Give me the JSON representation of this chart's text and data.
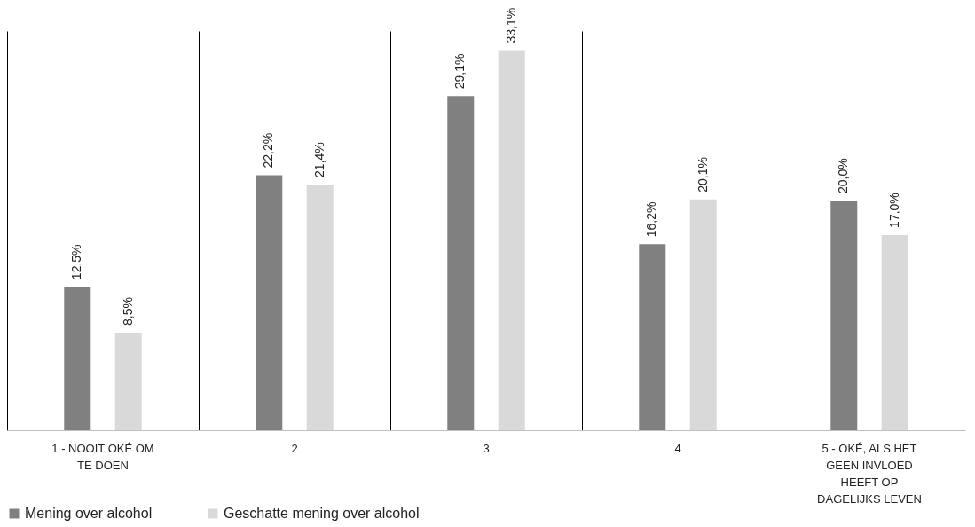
{
  "chart_data": {
    "type": "bar",
    "categories": [
      "1 - NOOIT OKÉ OM TE DOEN",
      "2",
      "3",
      "4",
      "5 - OKÉ, ALS HET GEEN INVLOED HEEFT OP DAGELIJKS LEVEN"
    ],
    "series": [
      {
        "name": "Mening over alcohol",
        "color": "#808080",
        "values": [
          12.5,
          22.2,
          29.1,
          16.2,
          20.0
        ],
        "value_labels": [
          "12,5%",
          "22,2%",
          "29,1%",
          "16,2%",
          "20,0%"
        ]
      },
      {
        "name": "Geschatte mening over alcohol",
        "color": "#d9d9d9",
        "values": [
          8.5,
          21.4,
          33.1,
          20.1,
          17.0
        ],
        "value_labels": [
          "8,5%",
          "21,4%",
          "33,1%",
          "20,1%",
          "17,0%"
        ]
      }
    ],
    "grid": "x",
    "legend": "bottom left"
  }
}
